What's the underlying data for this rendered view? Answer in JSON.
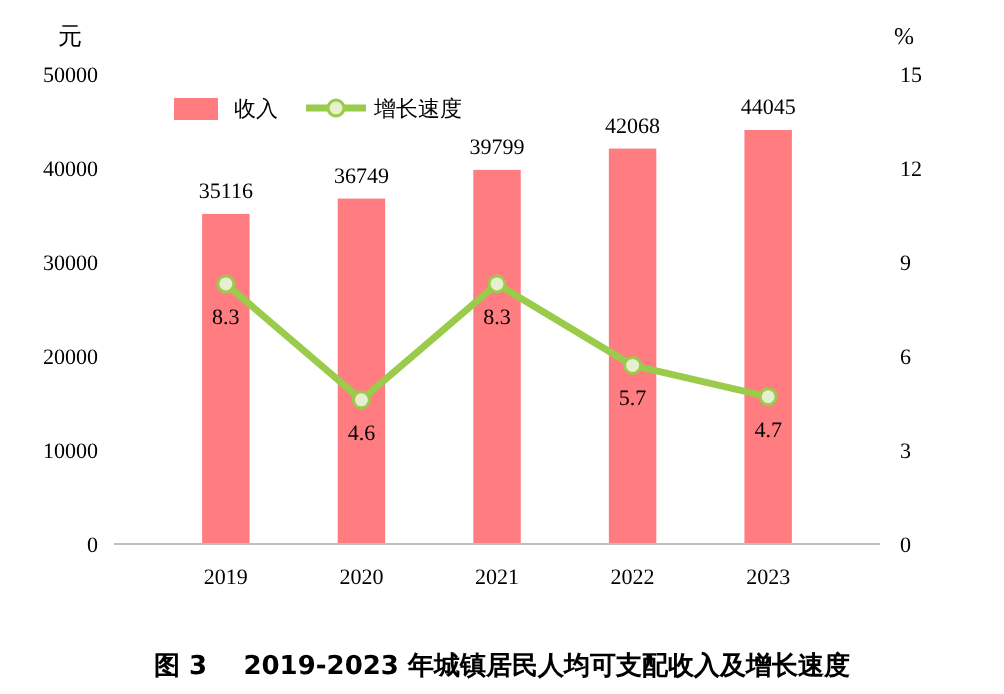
{
  "chart_data": {
    "type": "bar",
    "title": "图 3    2019-2023 年城镇居民人均可支配收入及增长速度",
    "ylabel": "元",
    "y2label": "%",
    "categories": [
      "2019",
      "2020",
      "2021",
      "2022",
      "2023"
    ],
    "series": [
      {
        "name": "收入",
        "color": "#ff7c80",
        "values": [
          35116,
          36749,
          39799,
          42068,
          44045
        ]
      },
      {
        "name": "增长速度",
        "type": "line",
        "axis": "y2",
        "color": "#9bcb4b",
        "marker": "circle",
        "values": [
          8.3,
          4.6,
          8.3,
          5.7,
          4.7
        ]
      }
    ],
    "ylim": [
      0,
      50000
    ],
    "yticks": [
      0,
      10000,
      20000,
      30000,
      40000,
      50000
    ],
    "y2lim": [
      0,
      15
    ],
    "y2ticks": [
      0,
      3,
      6,
      9,
      12,
      15
    ],
    "data_labels": true,
    "legend": "top left",
    "grid": false
  }
}
